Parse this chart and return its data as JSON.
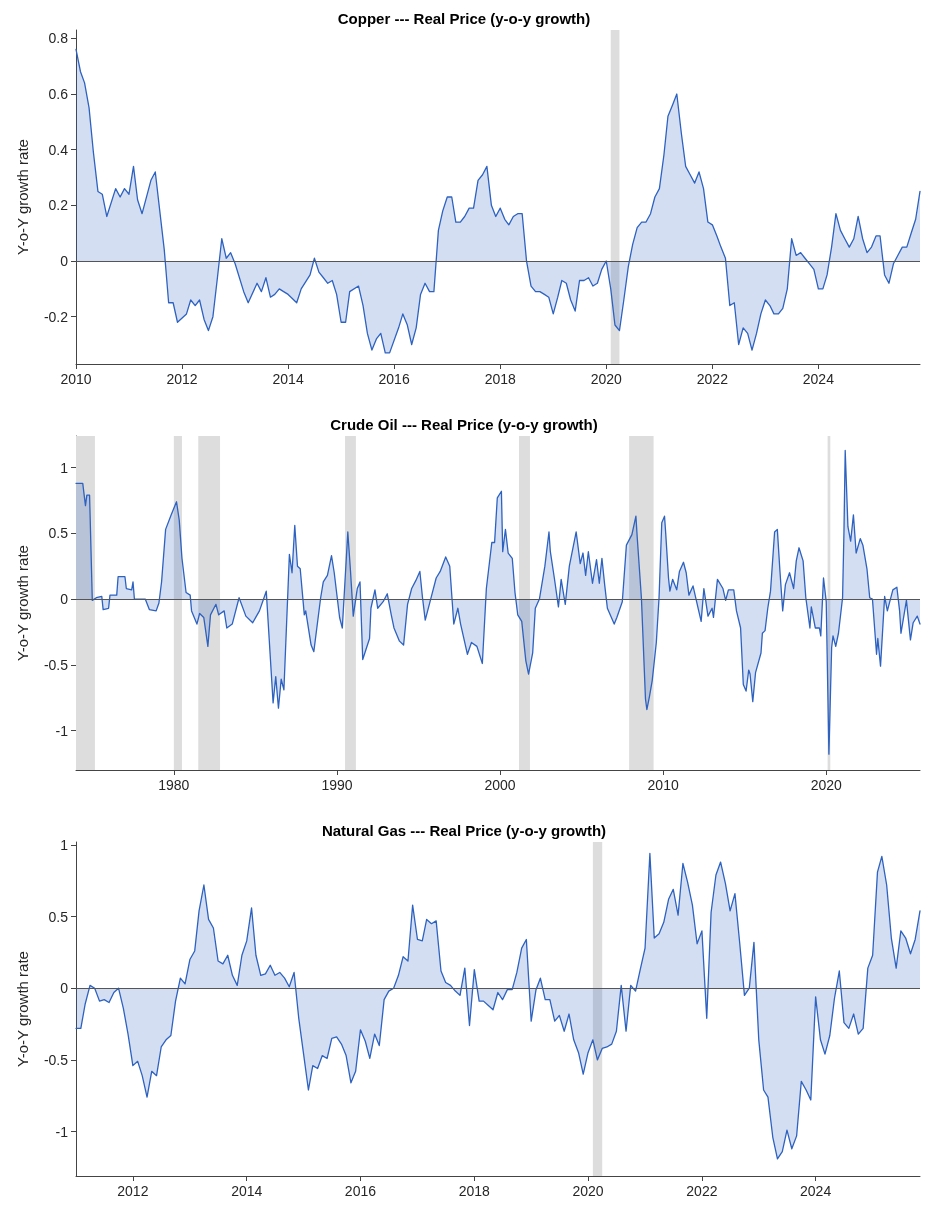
{
  "chart_data": [
    {
      "type": "area",
      "title": "Copper --- Real Price (y-o-y growth)",
      "ylabel": "Y-o-Y growth rate",
      "color": "#2e62c0",
      "marker": "none",
      "x": [
        "2010-01",
        "2010-02",
        "2010-03",
        "2010-04",
        "2010-05",
        "2010-06",
        "2010-07",
        "2010-08",
        "2010-10",
        "2010-11",
        "2010-12",
        "2011-01",
        "2011-02",
        "2011-03",
        "2011-04",
        "2011-06",
        "2011-07",
        "2011-09",
        "2011-10",
        "2011-11",
        "2011-12",
        "2012-02",
        "2012-03",
        "2012-04",
        "2012-05",
        "2012-06",
        "2012-07",
        "2012-08",
        "2012-09",
        "2012-10",
        "2012-11",
        "2012-12",
        "2013-01",
        "2013-03",
        "2013-04",
        "2013-06",
        "2013-07",
        "2013-08",
        "2013-09",
        "2013-10",
        "2013-11",
        "2013-12",
        "2014-01",
        "2014-03",
        "2014-04",
        "2014-06",
        "2014-07",
        "2014-08",
        "2014-09",
        "2014-10",
        "2014-11",
        "2014-12",
        "2015-01",
        "2015-02",
        "2015-03",
        "2015-05",
        "2015-06",
        "2015-07",
        "2015-08",
        "2015-09",
        "2015-10",
        "2015-11",
        "2015-12",
        "2016-02",
        "2016-03",
        "2016-04",
        "2016-05",
        "2016-06",
        "2016-07",
        "2016-08",
        "2016-09",
        "2016-10",
        "2016-11",
        "2016-12",
        "2017-01",
        "2017-02",
        "2017-03",
        "2017-04",
        "2017-05",
        "2017-06",
        "2017-07",
        "2017-08",
        "2017-09",
        "2017-10",
        "2017-11",
        "2017-12",
        "2018-01",
        "2018-02",
        "2018-03",
        "2018-04",
        "2018-05",
        "2018-06",
        "2018-07",
        "2018-08",
        "2018-09",
        "2018-10",
        "2018-11",
        "2018-12",
        "2019-01",
        "2019-02",
        "2019-03",
        "2019-04",
        "2019-05",
        "2019-06",
        "2019-07",
        "2019-08",
        "2019-09",
        "2019-10",
        "2019-11",
        "2019-12",
        "2020-01",
        "2020-02",
        "2020-03",
        "2020-04",
        "2020-05",
        "2020-06",
        "2020-07",
        "2020-08",
        "2020-09",
        "2020-10",
        "2020-11",
        "2020-12",
        "2021-01",
        "2021-02",
        "2021-03",
        "2021-04",
        "2021-05",
        "2021-06",
        "2021-07",
        "2021-08",
        "2021-09",
        "2021-10",
        "2021-11",
        "2021-12",
        "2022-01",
        "2022-02",
        "2022-03",
        "2022-04",
        "2022-05",
        "2022-06",
        "2022-07",
        "2022-08",
        "2022-09",
        "2022-10",
        "2022-11",
        "2022-12",
        "2023-01",
        "2023-02",
        "2023-03",
        "2023-04",
        "2023-05",
        "2023-06",
        "2023-07",
        "2023-08",
        "2023-09",
        "2023-10",
        "2023-11",
        "2023-12",
        "2024-01",
        "2024-02",
        "2024-03",
        "2024-04",
        "2024-05",
        "2024-06",
        "2024-07",
        "2024-08",
        "2024-09",
        "2024-10",
        "2024-11",
        "2024-12",
        "2025-01",
        "2025-02",
        "2025-03",
        "2025-04",
        "2025-05",
        "2025-06",
        "2025-07",
        "2025-08",
        "2025-09",
        "2025-10",
        "2025-11",
        "2025-12"
      ],
      "values": [
        0.76,
        0.68,
        0.64,
        0.55,
        0.39,
        0.25,
        0.24,
        0.16,
        0.26,
        0.23,
        0.26,
        0.24,
        0.34,
        0.22,
        0.17,
        0.29,
        0.32,
        0.04,
        -0.15,
        -0.15,
        -0.22,
        -0.19,
        -0.14,
        -0.16,
        -0.14,
        -0.21,
        -0.25,
        -0.2,
        -0.06,
        0.08,
        0.01,
        0.03,
        -0.01,
        -0.11,
        -0.15,
        -0.08,
        -0.11,
        -0.06,
        -0.13,
        -0.12,
        -0.1,
        -0.11,
        -0.12,
        -0.15,
        -0.1,
        -0.05,
        0.01,
        -0.04,
        -0.06,
        -0.08,
        -0.07,
        -0.12,
        -0.22,
        -0.22,
        -0.11,
        -0.09,
        -0.16,
        -0.26,
        -0.32,
        -0.28,
        -0.26,
        -0.33,
        -0.33,
        -0.24,
        -0.19,
        -0.23,
        -0.3,
        -0.24,
        -0.12,
        -0.08,
        -0.11,
        -0.11,
        0.11,
        0.18,
        0.23,
        0.23,
        0.14,
        0.14,
        0.16,
        0.19,
        0.19,
        0.29,
        0.31,
        0.34,
        0.2,
        0.16,
        0.19,
        0.15,
        0.13,
        0.16,
        0.17,
        0.17,
        0.0,
        -0.09,
        -0.11,
        -0.11,
        -0.12,
        -0.13,
        -0.19,
        -0.13,
        -0.07,
        -0.08,
        -0.14,
        -0.18,
        -0.07,
        -0.07,
        -0.06,
        -0.09,
        -0.08,
        -0.03,
        0.0,
        -0.1,
        -0.23,
        -0.25,
        -0.14,
        -0.02,
        0.06,
        0.12,
        0.14,
        0.14,
        0.17,
        0.23,
        0.26,
        0.38,
        0.52,
        0.56,
        0.6,
        0.46,
        0.34,
        0.31,
        0.28,
        0.32,
        0.26,
        0.14,
        0.13,
        0.09,
        0.05,
        0.01,
        -0.16,
        -0.15,
        -0.3,
        -0.24,
        -0.26,
        -0.32,
        -0.26,
        -0.19,
        -0.14,
        -0.16,
        -0.19,
        -0.19,
        -0.17,
        -0.1,
        0.08,
        0.02,
        0.03,
        0.01,
        -0.01,
        -0.03,
        -0.1,
        -0.1,
        -0.05,
        0.05,
        0.17,
        0.11,
        0.08,
        0.05,
        0.08,
        0.16,
        0.08,
        0.03,
        0.05,
        0.09,
        0.09,
        -0.05,
        -0.08,
        -0.01,
        0.02,
        0.05,
        0.05,
        0.1,
        0.15,
        0.25
      ],
      "xlim": [
        "2010-01",
        "2025-12"
      ],
      "ylim": [
        -0.37,
        0.83
      ],
      "xticks": [
        "2010",
        "2012",
        "2014",
        "2016",
        "2018",
        "2020",
        "2022",
        "2024"
      ],
      "yticks": [
        -0.2,
        0,
        0.2,
        0.4,
        0.6,
        0.8
      ],
      "bands": [
        {
          "axis": "x",
          "from": "2020-02",
          "to": "2020-04",
          "color": "#dddddd"
        }
      ],
      "ref_lines": [
        {
          "axis": "y",
          "value": 0,
          "color": "#555555"
        }
      ]
    },
    {
      "type": "area",
      "title": "Crude Oil --- Real Price (y-o-y growth)",
      "ylabel": "Y-o-Y growth rate",
      "color": "#2e62c0",
      "marker": "none",
      "x": [
        "1974-01",
        "1974-06",
        "1974-08",
        "1974-09",
        "1974-11",
        "1975-01",
        "1975-04",
        "1975-08",
        "1975-09",
        "1976-01",
        "1976-02",
        "1976-07",
        "1976-08",
        "1977-01",
        "1977-02",
        "1977-06",
        "1977-07",
        "1977-08",
        "1978-04",
        "1978-07",
        "1978-12",
        "1979-02",
        "1979-04",
        "1979-07",
        "1979-11",
        "1980-03",
        "1980-05",
        "1980-07",
        "1980-10",
        "1981-01",
        "1981-02",
        "1981-06",
        "1981-08",
        "1981-11",
        "1982-02",
        "1982-04",
        "1982-08",
        "1982-10",
        "1983-02",
        "1983-04",
        "1983-08",
        "1984-01",
        "1984-06",
        "1984-11",
        "1985-04",
        "1985-09",
        "1986-02",
        "1986-04",
        "1986-06",
        "1986-08",
        "1986-10",
        "1987-02",
        "1987-04",
        "1987-06",
        "1987-08",
        "1987-10",
        "1988-01",
        "1988-02",
        "1988-06",
        "1988-08",
        "1989-01",
        "1989-03",
        "1989-06",
        "1989-09",
        "1989-11",
        "1990-03",
        "1990-05",
        "1990-09",
        "1990-11",
        "1991-01",
        "1991-04",
        "1991-06",
        "1991-08",
        "1992-01",
        "1992-02",
        "1992-05",
        "1992-07",
        "1992-11",
        "1993-02",
        "1993-05",
        "1993-07",
        "1993-11",
        "1994-02",
        "1994-05",
        "1994-08",
        "1994-11",
        "1995-02",
        "1995-04",
        "1995-06",
        "1995-10",
        "1996-02",
        "1996-05",
        "1996-09",
        "1996-12",
        "1997-03",
        "1997-06",
        "1997-08",
        "1998-01",
        "1998-04",
        "1998-08",
        "1998-12",
        "1999-03",
        "1999-07",
        "1999-09",
        "1999-11",
        "2000-02",
        "2000-03",
        "2000-05",
        "2000-07",
        "2000-10",
        "2000-12",
        "2001-02",
        "2001-05",
        "2001-08",
        "2001-10",
        "2002-01",
        "2002-03",
        "2002-06",
        "2002-10",
        "2003-01",
        "2003-02",
        "2003-05",
        "2003-08",
        "2003-10",
        "2004-01",
        "2004-04",
        "2004-09",
        "2004-12",
        "2005-02",
        "2005-04",
        "2005-06",
        "2005-09",
        "2005-12",
        "2006-02",
        "2006-04",
        "2006-06",
        "2006-08",
        "2007-01",
        "2007-03",
        "2007-07",
        "2007-10",
        "2008-02",
        "2008-05",
        "2008-06",
        "2008-09",
        "2008-12",
        "2009-01",
        "2009-03",
        "2009-05",
        "2009-08",
        "2009-10",
        "2009-12",
        "2010-02",
        "2010-03",
        "2010-05",
        "2010-06",
        "2010-08",
        "2010-11",
        "2011-01",
        "2011-04",
        "2011-06",
        "2011-08",
        "2011-11",
        "2012-03",
        "2012-05",
        "2012-07",
        "2012-10",
        "2013-01",
        "2013-02",
        "2013-05",
        "2013-09",
        "2013-11",
        "2014-01",
        "2014-05",
        "2014-07",
        "2014-10",
        "2014-12",
        "2015-02",
        "2015-04",
        "2015-05",
        "2015-07",
        "2015-09",
        "2016-01",
        "2016-02",
        "2016-04",
        "2016-06",
        "2016-08",
        "2016-11",
        "2017-01",
        "2017-03",
        "2017-05",
        "2017-07",
        "2017-10",
        "2018-01",
        "2018-03",
        "2018-05",
        "2018-08",
        "2018-10",
        "2019-01",
        "2019-02",
        "2019-05",
        "2019-08",
        "2019-09",
        "2019-11",
        "2020-01",
        "2020-03",
        "2020-05",
        "2020-06",
        "2020-08",
        "2020-10",
        "2021-01",
        "2021-02",
        "2021-03",
        "2021-05",
        "2021-07",
        "2021-09",
        "2021-11",
        "2022-02",
        "2022-04",
        "2022-07",
        "2022-09",
        "2022-11",
        "2023-02",
        "2023-03",
        "2023-05",
        "2023-08",
        "2023-10",
        "2024-02",
        "2024-05",
        "2024-07",
        "2024-08",
        "2024-12",
        "2025-03",
        "2025-05",
        "2025-08",
        "2025-10"
      ],
      "values": [
        0.88,
        0.88,
        0.71,
        0.79,
        0.79,
        -0.01,
        0.01,
        0.02,
        -0.08,
        -0.07,
        0.03,
        0.03,
        0.17,
        0.17,
        0.08,
        0.07,
        0.13,
        0.0,
        0.0,
        -0.08,
        -0.09,
        -0.03,
        0.13,
        0.53,
        0.64,
        0.74,
        0.6,
        0.31,
        0.05,
        0.03,
        -0.09,
        -0.19,
        -0.11,
        -0.14,
        -0.36,
        -0.12,
        -0.04,
        -0.12,
        -0.09,
        -0.22,
        -0.19,
        0.01,
        -0.13,
        -0.18,
        -0.09,
        0.06,
        -0.79,
        -0.59,
        -0.83,
        -0.61,
        -0.69,
        0.34,
        0.2,
        0.56,
        0.25,
        0.23,
        -0.12,
        -0.09,
        -0.35,
        -0.4,
        0.01,
        0.13,
        0.18,
        0.33,
        0.2,
        -0.14,
        -0.22,
        0.51,
        0.21,
        -0.13,
        0.08,
        0.13,
        -0.46,
        -0.3,
        -0.07,
        0.07,
        -0.07,
        -0.02,
        0.04,
        -0.12,
        -0.22,
        -0.32,
        -0.35,
        -0.04,
        0.08,
        0.14,
        0.21,
        0.01,
        -0.16,
        0.0,
        0.16,
        0.21,
        0.32,
        0.25,
        -0.19,
        -0.07,
        -0.19,
        -0.42,
        -0.33,
        -0.36,
        -0.49,
        0.08,
        0.43,
        0.43,
        0.77,
        0.82,
        0.36,
        0.53,
        0.35,
        0.31,
        0.05,
        -0.12,
        -0.17,
        -0.47,
        -0.57,
        -0.41,
        -0.07,
        0.0,
        0.25,
        0.51,
        0.36,
        0.16,
        -0.06,
        0.15,
        -0.04,
        0.25,
        0.51,
        0.27,
        0.35,
        0.18,
        0.36,
        0.12,
        0.3,
        0.12,
        0.31,
        0.11,
        -0.07,
        -0.19,
        -0.14,
        -0.02,
        0.41,
        0.49,
        0.63,
        0.46,
        0.01,
        -0.76,
        -0.84,
        -0.74,
        -0.62,
        -0.33,
        0.01,
        0.58,
        0.63,
        0.49,
        0.16,
        0.06,
        0.15,
        0.07,
        0.21,
        0.28,
        0.2,
        0.03,
        0.1,
        -0.08,
        -0.17,
        0.08,
        -0.13,
        -0.07,
        -0.14,
        0.15,
        0.08,
        -0.01,
        0.07,
        0.07,
        -0.09,
        -0.22,
        -0.65,
        -0.7,
        -0.54,
        -0.57,
        -0.78,
        -0.56,
        -0.41,
        -0.26,
        -0.24,
        -0.07,
        0.06,
        0.51,
        0.53,
        0.21,
        -0.09,
        0.11,
        0.2,
        0.08,
        0.29,
        0.39,
        0.29,
        0.01,
        -0.22,
        -0.06,
        -0.22,
        -0.22,
        -0.28,
        0.16,
        -0.02,
        -1.18,
        -0.37,
        -0.28,
        -0.36,
        -0.26,
        0.01,
        0.51,
        1.13,
        0.55,
        0.44,
        0.64,
        0.35,
        0.46,
        0.41,
        0.23,
        0.01,
        0.0,
        -0.42,
        -0.3,
        -0.51,
        0.02,
        -0.09,
        0.07,
        0.09,
        -0.09,
        -0.26,
        -0.01,
        -0.31,
        -0.18,
        -0.13,
        -0.19
      ],
      "xlim": [
        "1974-01",
        "2025-10"
      ],
      "ylim": [
        -1.3,
        1.24
      ],
      "xticks": [
        "1980",
        "1990",
        "2000",
        "2010",
        "2020"
      ],
      "yticks": [
        -1,
        -0.5,
        0,
        0.5,
        1
      ],
      "bands": [
        {
          "axis": "x",
          "from": "1974-01",
          "to": "1975-03",
          "color": "#dddddd"
        },
        {
          "axis": "x",
          "from": "1980-01",
          "to": "1980-07",
          "color": "#dddddd"
        },
        {
          "axis": "x",
          "from": "1981-07",
          "to": "1982-11",
          "color": "#dddddd"
        },
        {
          "axis": "x",
          "from": "1990-07",
          "to": "1991-03",
          "color": "#dddddd"
        },
        {
          "axis": "x",
          "from": "2001-03",
          "to": "2001-11",
          "color": "#dddddd"
        },
        {
          "axis": "x",
          "from": "2007-12",
          "to": "2009-06",
          "color": "#dddddd"
        },
        {
          "axis": "x",
          "from": "2020-02",
          "to": "2020-04",
          "color": "#dddddd"
        }
      ],
      "ref_lines": [
        {
          "axis": "y",
          "value": 0,
          "color": "#555555"
        }
      ]
    },
    {
      "type": "area",
      "title": "Natural Gas --- Real Price (y-o-y growth)",
      "ylabel": "Y-o-Y growth rate",
      "color": "#2e62c0",
      "marker": "none",
      "x": [
        "2011-01",
        "2011-02",
        "2011-03",
        "2011-04",
        "2011-05",
        "2011-06",
        "2011-07",
        "2011-08",
        "2011-09",
        "2011-10",
        "2011-11",
        "2011-12",
        "2012-01",
        "2012-02",
        "2012-03",
        "2012-04",
        "2012-05",
        "2012-06",
        "2012-07",
        "2012-08",
        "2012-09",
        "2012-10",
        "2012-11",
        "2012-12",
        "2013-01",
        "2013-02",
        "2013-03",
        "2013-04",
        "2013-05",
        "2013-06",
        "2013-07",
        "2013-08",
        "2013-09",
        "2013-10",
        "2013-11",
        "2013-12",
        "2014-01",
        "2014-02",
        "2014-03",
        "2014-04",
        "2014-05",
        "2014-06",
        "2014-07",
        "2014-08",
        "2014-09",
        "2014-10",
        "2014-11",
        "2014-12",
        "2015-01",
        "2015-02",
        "2015-03",
        "2015-04",
        "2015-05",
        "2015-06",
        "2015-07",
        "2015-08",
        "2015-09",
        "2015-10",
        "2015-11",
        "2015-12",
        "2016-01",
        "2016-02",
        "2016-03",
        "2016-04",
        "2016-05",
        "2016-06",
        "2016-07",
        "2016-08",
        "2016-09",
        "2016-10",
        "2016-11",
        "2016-12",
        "2017-01",
        "2017-02",
        "2017-03",
        "2017-04",
        "2017-05",
        "2017-06",
        "2017-07",
        "2017-08",
        "2017-09",
        "2017-10",
        "2017-11",
        "2017-12",
        "2018-01",
        "2018-02",
        "2018-03",
        "2018-04",
        "2018-05",
        "2018-06",
        "2018-07",
        "2018-08",
        "2018-09",
        "2018-10",
        "2018-11",
        "2018-12",
        "2019-01",
        "2019-02",
        "2019-03",
        "2019-04",
        "2019-05",
        "2019-06",
        "2019-07",
        "2019-08",
        "2019-09",
        "2019-10",
        "2019-11",
        "2019-12",
        "2020-01",
        "2020-02",
        "2020-03",
        "2020-04",
        "2020-05",
        "2020-06",
        "2020-07",
        "2020-08",
        "2020-09",
        "2020-10",
        "2020-11",
        "2020-12",
        "2021-01",
        "2021-02",
        "2021-03",
        "2021-04",
        "2021-05",
        "2021-06",
        "2021-07",
        "2021-08",
        "2021-09",
        "2021-10",
        "2021-11",
        "2021-12",
        "2022-01",
        "2022-02",
        "2022-03",
        "2022-04",
        "2022-05",
        "2022-06",
        "2022-07",
        "2022-08",
        "2022-09",
        "2022-10",
        "2022-11",
        "2022-12",
        "2023-01",
        "2023-02",
        "2023-03",
        "2023-04",
        "2023-05",
        "2023-06",
        "2023-07",
        "2023-08",
        "2023-09",
        "2023-10",
        "2023-11",
        "2023-12",
        "2024-01",
        "2024-02",
        "2024-03",
        "2024-04",
        "2024-05",
        "2024-06",
        "2024-07",
        "2024-08",
        "2024-09",
        "2024-10",
        "2024-11",
        "2024-12",
        "2025-01",
        "2025-02",
        "2025-03",
        "2025-04",
        "2025-05",
        "2025-06",
        "2025-07",
        "2025-08",
        "2025-09",
        "2025-10",
        "2025-11"
      ],
      "values": [
        -0.28,
        -0.28,
        -0.11,
        0.02,
        0.0,
        -0.09,
        -0.08,
        -0.1,
        -0.03,
        0.0,
        -0.14,
        -0.32,
        -0.54,
        -0.51,
        -0.61,
        -0.76,
        -0.58,
        -0.61,
        -0.41,
        -0.36,
        -0.33,
        -0.09,
        0.07,
        0.03,
        0.2,
        0.26,
        0.54,
        0.72,
        0.48,
        0.42,
        0.19,
        0.17,
        0.23,
        0.09,
        0.02,
        0.23,
        0.33,
        0.56,
        0.23,
        0.09,
        0.1,
        0.16,
        0.09,
        0.11,
        0.07,
        0.01,
        0.11,
        -0.21,
        -0.46,
        -0.71,
        -0.54,
        -0.56,
        -0.47,
        -0.49,
        -0.35,
        -0.34,
        -0.39,
        -0.47,
        -0.66,
        -0.58,
        -0.29,
        -0.37,
        -0.49,
        -0.32,
        -0.4,
        -0.08,
        -0.02,
        0.0,
        0.09,
        0.22,
        0.19,
        0.58,
        0.34,
        0.33,
        0.48,
        0.45,
        0.47,
        0.12,
        0.04,
        0.02,
        -0.02,
        -0.05,
        0.14,
        -0.26,
        0.13,
        -0.09,
        -0.09,
        -0.12,
        -0.15,
        -0.03,
        -0.08,
        -0.01,
        -0.01,
        0.11,
        0.28,
        0.34,
        -0.23,
        -0.01,
        0.07,
        -0.08,
        -0.08,
        -0.23,
        -0.19,
        -0.3,
        -0.18,
        -0.36,
        -0.45,
        -0.6,
        -0.45,
        -0.36,
        -0.5,
        -0.42,
        -0.41,
        -0.39,
        -0.3,
        0.02,
        -0.3,
        0.02,
        -0.02,
        0.13,
        0.28,
        0.94,
        0.35,
        0.38,
        0.46,
        0.62,
        0.69,
        0.51,
        0.87,
        0.74,
        0.58,
        0.31,
        0.4,
        -0.21,
        0.53,
        0.79,
        0.88,
        0.73,
        0.54,
        0.66,
        0.31,
        -0.05,
        0.0,
        0.32,
        -0.36,
        -0.71,
        -0.76,
        -1.04,
        -1.19,
        -1.14,
        -0.99,
        -1.12,
        -1.03,
        -0.65,
        -0.71,
        -0.78,
        -0.06,
        -0.36,
        -0.46,
        -0.33,
        -0.07,
        0.12,
        -0.24,
        -0.28,
        -0.18,
        -0.32,
        -0.28,
        0.14,
        0.23,
        0.81,
        0.92,
        0.72,
        0.35,
        0.14,
        0.4,
        0.35,
        0.24,
        0.34,
        0.54
      ],
      "xlim": [
        "2011-01",
        "2025-11"
      ],
      "ylim": [
        -1.31,
        1.02
      ],
      "xticks": [
        "2012",
        "2014",
        "2016",
        "2018",
        "2020",
        "2022",
        "2024"
      ],
      "yticks": [
        -1,
        -0.5,
        0,
        0.5,
        1
      ],
      "bands": [
        {
          "axis": "x",
          "from": "2020-02",
          "to": "2020-04",
          "color": "#dddddd"
        }
      ],
      "ref_lines": [
        {
          "axis": "y",
          "value": 0,
          "color": "#555555"
        }
      ]
    }
  ]
}
